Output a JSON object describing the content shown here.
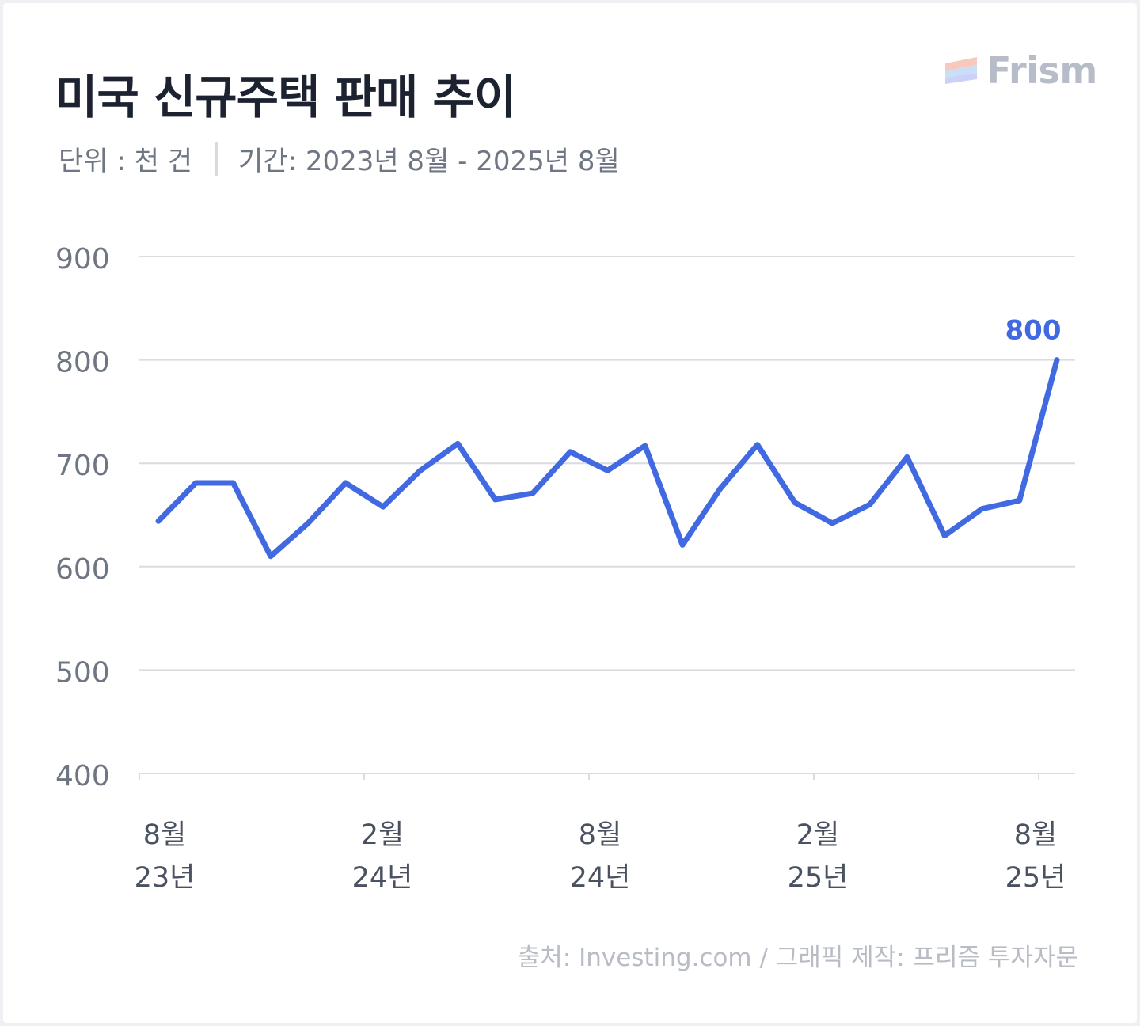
{
  "header": {
    "title": "미국 신규주택 판매 추이",
    "unit": "단위 : 천 건",
    "period": "기간: 2023년 8월 - 2025년 8월"
  },
  "logo": {
    "brand": "Frism",
    "icon": "frism-stripes-logo"
  },
  "footer": {
    "source": "출처: Investing.com / 그래픽 제작: 프리즘 투자자문"
  },
  "colors": {
    "line": "#4169e1",
    "grid": "#d9dce1",
    "title": "#1c2230",
    "muted": "#6f7683"
  },
  "chart_data": {
    "type": "line",
    "title": "미국 신규주택 판매 추이",
    "ylim": [
      400,
      900
    ],
    "yticks": [
      "900",
      "800",
      "700",
      "600",
      "500",
      "400"
    ],
    "grid": true,
    "x": [
      "2023-08",
      "2023-09",
      "2023-10",
      "2023-11",
      "2023-12",
      "2024-01",
      "2024-02",
      "2024-03",
      "2024-04",
      "2024-05",
      "2024-06",
      "2024-07",
      "2024-08",
      "2024-09",
      "2024-10",
      "2024-11",
      "2024-12",
      "2025-01",
      "2025-02",
      "2025-03",
      "2025-04",
      "2025-05",
      "2025-06",
      "2025-07",
      "2025-08"
    ],
    "xticks": [
      {
        "x": "2023-08",
        "month": "8월",
        "year": "23년"
      },
      {
        "x": "2024-02",
        "month": "2월",
        "year": "24년"
      },
      {
        "x": "2024-08",
        "month": "8월",
        "year": "24년"
      },
      {
        "x": "2025-02",
        "month": "2월",
        "year": "25년"
      },
      {
        "x": "2025-08",
        "month": "8월",
        "year": "25년"
      }
    ],
    "series": [
      {
        "values": [
          644,
          681,
          681,
          610,
          642,
          681,
          658,
          693,
          719,
          665,
          671,
          711,
          693,
          717,
          621,
          675,
          718,
          662,
          642,
          660,
          706,
          630,
          656,
          664,
          800
        ]
      }
    ],
    "data_labels": [
      {
        "x": "2025-08",
        "text": "800"
      }
    ]
  }
}
